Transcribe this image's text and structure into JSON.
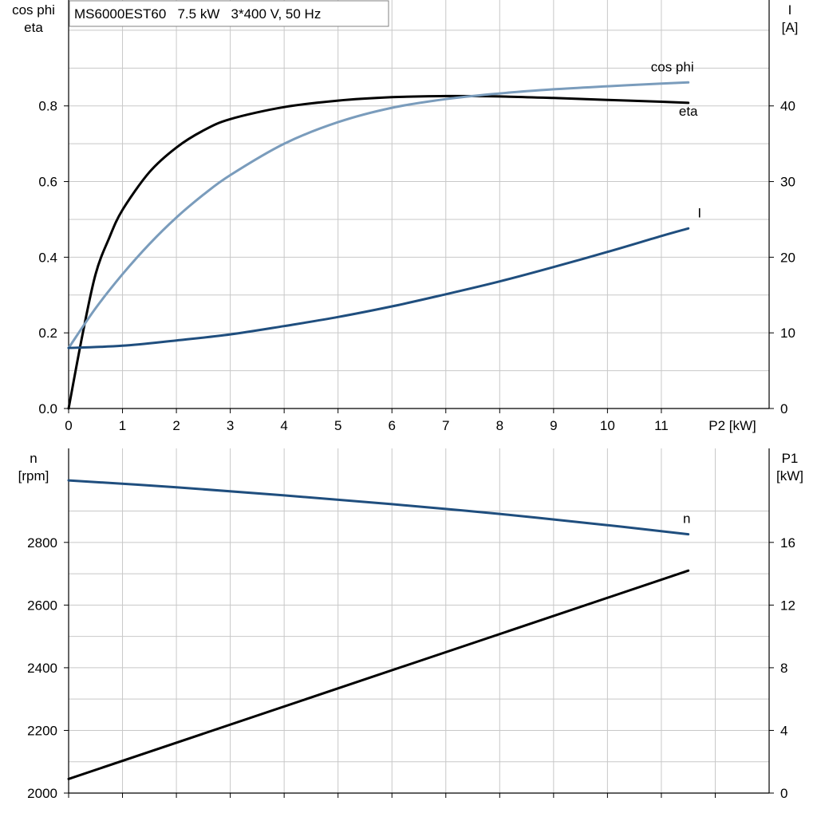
{
  "title": "MS6000EST60   7.5 kW   3*400 V, 50 Hz",
  "chart_data": [
    {
      "id": "top",
      "type": "line",
      "x": {
        "label": "P2 [kW]",
        "range": [
          0,
          13
        ],
        "ticks": [
          0,
          1,
          2,
          3,
          4,
          5,
          6,
          7,
          8,
          9,
          10,
          11
        ]
      },
      "y_left": {
        "label_lines": [
          "cos phi",
          "eta"
        ],
        "range": [
          0,
          1.08
        ],
        "ticks": [
          0.0,
          0.2,
          0.4,
          0.6,
          0.8
        ],
        "tick_labels": [
          "0.0",
          "0.2",
          "0.4",
          "0.6",
          "0.8"
        ]
      },
      "y_right": {
        "label_lines": [
          "I",
          "[A]"
        ],
        "range": [
          0,
          54
        ],
        "ticks": [
          0,
          10,
          20,
          30,
          40
        ],
        "tick_labels": [
          "0",
          "10",
          "20",
          "30",
          "40"
        ]
      },
      "grid": true,
      "series": [
        {
          "name": "eta",
          "axis": "left",
          "color": "#000000",
          "x": [
            0,
            0.25,
            0.5,
            0.75,
            1,
            1.5,
            2,
            2.5,
            3,
            4,
            5,
            6,
            7,
            8,
            9,
            10,
            11,
            11.5
          ],
          "y": [
            0.0,
            0.19,
            0.355,
            0.45,
            0.525,
            0.625,
            0.69,
            0.735,
            0.765,
            0.797,
            0.814,
            0.823,
            0.826,
            0.825,
            0.821,
            0.816,
            0.811,
            0.808
          ]
        },
        {
          "name": "cos phi",
          "axis": "left",
          "color": "#7a9cbc",
          "x": [
            0,
            0.5,
            1,
            1.5,
            2,
            2.5,
            3,
            4,
            5,
            6,
            7,
            8,
            9,
            10,
            11,
            11.5
          ],
          "y": [
            0.16,
            0.265,
            0.355,
            0.435,
            0.505,
            0.565,
            0.617,
            0.7,
            0.757,
            0.795,
            0.818,
            0.833,
            0.844,
            0.852,
            0.859,
            0.862
          ]
        },
        {
          "name": "I",
          "axis": "right",
          "color": "#1f4e7e",
          "x": [
            0,
            1,
            2,
            3,
            4,
            5,
            6,
            7,
            8,
            9,
            10,
            11,
            11.5
          ],
          "y": [
            8.0,
            8.3,
            9.0,
            9.8,
            10.9,
            12.1,
            13.5,
            15.1,
            16.8,
            18.7,
            20.7,
            22.8,
            23.8
          ]
        }
      ]
    },
    {
      "id": "bottom",
      "type": "line",
      "x": {
        "range": [
          0,
          13
        ],
        "ticks": [
          0,
          1,
          2,
          3,
          4,
          5,
          6,
          7,
          8,
          9,
          10,
          11,
          12
        ]
      },
      "y_left": {
        "label_lines": [
          "n",
          "[rpm]"
        ],
        "range": [
          2000,
          3100
        ],
        "ticks": [
          2000,
          2200,
          2400,
          2600,
          2800
        ],
        "tick_labels": [
          "2000",
          "2200",
          "2400",
          "2600",
          "2800"
        ],
        "minor_ticks": [
          2100,
          2300,
          2500,
          2700,
          2900
        ]
      },
      "y_right": {
        "label_lines": [
          "P1",
          "[kW]"
        ],
        "range": [
          0,
          22
        ],
        "ticks": [
          0,
          4,
          8,
          12,
          16
        ],
        "tick_labels": [
          "0",
          "4",
          "8",
          "12",
          "16"
        ]
      },
      "grid": true,
      "series": [
        {
          "name": "n",
          "axis": "left",
          "color": "#1f4e7e",
          "x": [
            0,
            2,
            4,
            6,
            8,
            10,
            11.5
          ],
          "y": [
            2998,
            2976,
            2950,
            2922,
            2891,
            2855,
            2826
          ]
        },
        {
          "name": "",
          "axis": "right",
          "color": "#000000",
          "x": [
            0,
            11.5
          ],
          "y": [
            0.9,
            14.2
          ]
        }
      ]
    }
  ],
  "series_labels": [
    {
      "chart": "top",
      "series": "cos phi",
      "text": "cos phi",
      "at_x": 11.5,
      "color": "#7a9cbc"
    },
    {
      "chart": "top",
      "series": "eta",
      "text": "eta",
      "at_x": 11.5,
      "color": "#000000"
    },
    {
      "chart": "top",
      "series": "I",
      "text": "I",
      "at_x": 11.5,
      "color": "#1f4e7e"
    },
    {
      "chart": "bottom",
      "series": "n",
      "text": "n",
      "at_x": 11.5,
      "color": "#1f4e7e"
    }
  ]
}
